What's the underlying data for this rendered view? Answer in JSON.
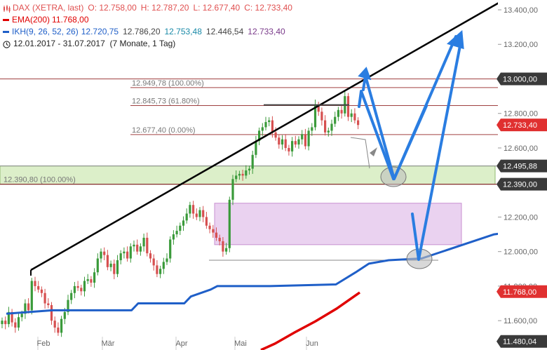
{
  "header": {
    "instrument_line": {
      "prefix": "DAX (XETRA, last)",
      "open": "O: 12.758,00",
      "high": "H: 12.787,20",
      "low": "L: 12.677,40",
      "close": "C: 12.733,40"
    },
    "ema_line": {
      "label": "EMA(200)",
      "value": "11.768,00"
    },
    "ikh_line": {
      "label": "IKH(9, 26, 52, 26)",
      "values": [
        "12.720,75",
        "12.786,20",
        "12.753,48",
        "12.446,54",
        "12.733,40"
      ]
    },
    "period_line": "12.01.2017 - 31.07.2017  (7 Monate, 1 Tag)"
  },
  "colors": {
    "candle_up": "#3a9a3a",
    "candle_down": "#d65050",
    "ema": "#e00000",
    "ikh": "#1f5fc8",
    "arrows": "#2a7de1",
    "trendline": "#000000",
    "support_zone": "#dcefc9",
    "target_zone": "#ead2f0",
    "hline": "#a04040",
    "label_bg": "#3a3a3a",
    "label_red": "#e03030",
    "header_red": "#e05050",
    "ikh_teal": "#1a8aa8",
    "ikh_purple": "#7a3a8a"
  },
  "chart_data": {
    "type": "candlestick",
    "x_ticks": [
      "Feb",
      "Mär",
      "Apr",
      "Mai",
      "Jun"
    ],
    "y_ticks": [
      "13.400,00",
      "13.200,00",
      "12.800,00",
      "12.600,00",
      "12.200,00",
      "12.000,00",
      "11.800,00",
      "11.600,00"
    ],
    "ylim": [
      11480,
      13440
    ],
    "price_labels": [
      {
        "text": "13.000,00",
        "value": 13000,
        "style": "dark"
      },
      {
        "text": "12.733,40",
        "value": 12733.4,
        "style": "red"
      },
      {
        "text": "12.495,88",
        "value": 12495.88,
        "style": "dark"
      },
      {
        "text": "12.390,00",
        "value": 12390,
        "style": "dark"
      },
      {
        "text": "11.768,00",
        "value": 11768,
        "style": "red"
      },
      {
        "text": "11.480,04",
        "value": 11480.04,
        "style": "dark"
      }
    ],
    "fib_levels": [
      {
        "text": "12.949,78 (100.00%)",
        "value": 12949.78
      },
      {
        "text": "12.845,73 (61.80%)",
        "value": 12845.73
      },
      {
        "text": "12.677,40 (0.00%)",
        "value": 12677.4
      }
    ],
    "zone_labels": [
      {
        "text": "12.390,80 (100.00%)",
        "value": 12390.8
      }
    ],
    "support_zone": [
      12390,
      12496
    ],
    "target_zone": [
      12040,
      12280
    ],
    "closes": [
      11600,
      11580,
      11650,
      11590,
      11560,
      11620,
      11640,
      11700,
      11660,
      11830,
      11800,
      11780,
      11760,
      11700,
      11690,
      11600,
      11560,
      11530,
      11610,
      11650,
      11720,
      11760,
      11800,
      11790,
      11770,
      11830,
      11840,
      11820,
      11880,
      11960,
      12000,
      11980,
      11910,
      11930,
      11870,
      11950,
      11990,
      12000,
      11960,
      12030,
      12040,
      12000,
      12030,
      12080,
      11990,
      11960,
      11920,
      11870,
      11900,
      11940,
      11960,
      12070,
      12100,
      12120,
      12150,
      12180,
      12220,
      12270,
      12220,
      12200,
      12240,
      12200,
      12150,
      12130,
      12110,
      12080,
      12060,
      12000,
      12020,
      12300,
      12420,
      12440,
      12450,
      12440,
      12470,
      12480,
      12560,
      12640,
      12700,
      12720,
      12750,
      12760,
      12690,
      12660,
      12620,
      12650,
      12600,
      12580,
      12640,
      12620,
      12650,
      12680,
      12610,
      12700,
      12720,
      12850,
      12810,
      12760,
      12690,
      12700,
      12740,
      12780,
      12820,
      12800,
      12900,
      12780,
      12800,
      12760,
      12733
    ],
    "ikh_line": [
      [
        11640,
        0
      ],
      [
        11660,
        14
      ],
      [
        11660,
        38
      ],
      [
        11700,
        40
      ],
      [
        11700,
        54
      ],
      [
        11740,
        56
      ],
      [
        11780,
        62
      ],
      [
        11800,
        64
      ],
      [
        11800,
        80
      ],
      [
        11810,
        100
      ],
      [
        11880,
        106
      ],
      [
        11930,
        110
      ],
      [
        11950,
        116
      ],
      [
        11960,
        126
      ],
      [
        12100,
        148
      ],
      [
        12120,
        156
      ],
      [
        12120,
        172
      ],
      [
        12200,
        180
      ],
      [
        12220,
        188
      ],
      [
        12330,
        192
      ],
      [
        12340,
        210
      ],
      [
        12390,
        218
      ],
      [
        12390,
        246
      ],
      [
        12600,
        252
      ],
      [
        12620,
        262
      ],
      [
        12660,
        270
      ],
      [
        12680,
        284
      ],
      [
        12700,
        300
      ],
      [
        12720,
        305
      ]
    ],
    "ema_line": [
      [
        11400,
        0
      ],
      [
        11768,
        1
      ]
    ]
  }
}
